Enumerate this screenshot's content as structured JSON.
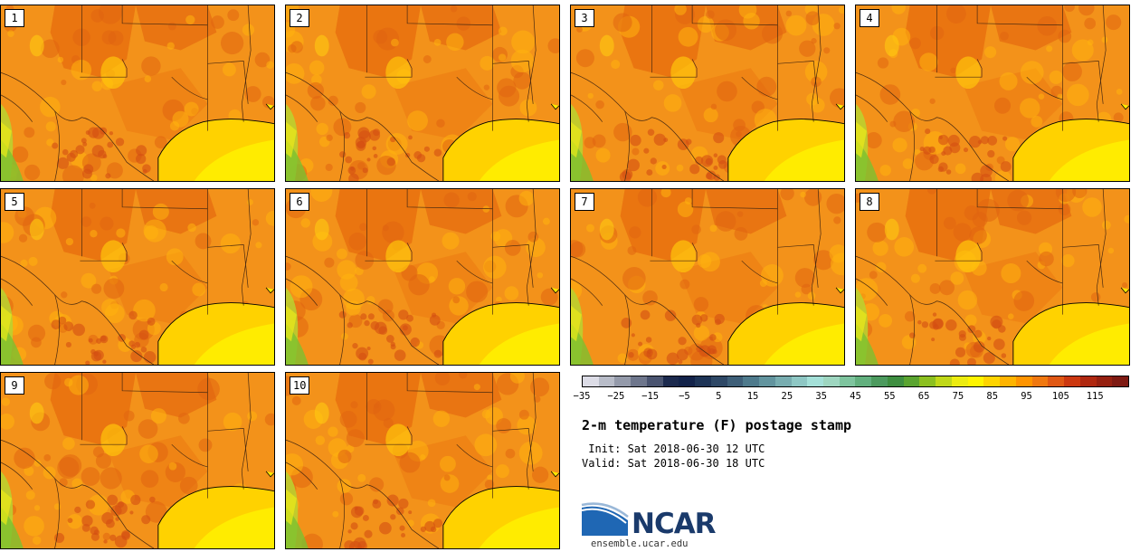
{
  "title": "2-m temperature (F) postage stamp",
  "init": " Init: Sat 2018-06-30 12 UTC",
  "valid": "Valid: Sat 2018-06-30 18 UTC",
  "website": "ensemble.ucar.edu",
  "logo_text": "NCAR",
  "members": [
    "1",
    "2",
    "3",
    "4",
    "5",
    "6",
    "7",
    "8",
    "9",
    "10"
  ],
  "colorbar": {
    "colors": [
      "#dcdce6",
      "#b8bcc8",
      "#949aaa",
      "#6e768c",
      "#4a5470",
      "#1c2a4e",
      "#13234a",
      "#1e3456",
      "#2e4866",
      "#3e5f78",
      "#4e7a8c",
      "#62949e",
      "#78adb0",
      "#8ec7c4",
      "#a4e0d8",
      "#9ed6c0",
      "#7ec49e",
      "#62b07e",
      "#4c9a5e",
      "#3e8e40",
      "#5aa430",
      "#8cc020",
      "#c0d818",
      "#ecec10",
      "#fff400",
      "#ffd400",
      "#ffb400",
      "#ff9400",
      "#f07810",
      "#e05814",
      "#cc3810",
      "#b02810",
      "#962010",
      "#7e1a12"
    ],
    "ticks": [
      "−35",
      "−25",
      "−15",
      "−5",
      "5",
      "15",
      "25",
      "35",
      "45",
      "55",
      "65",
      "75",
      "85",
      "95",
      "105",
      "115"
    ]
  }
}
